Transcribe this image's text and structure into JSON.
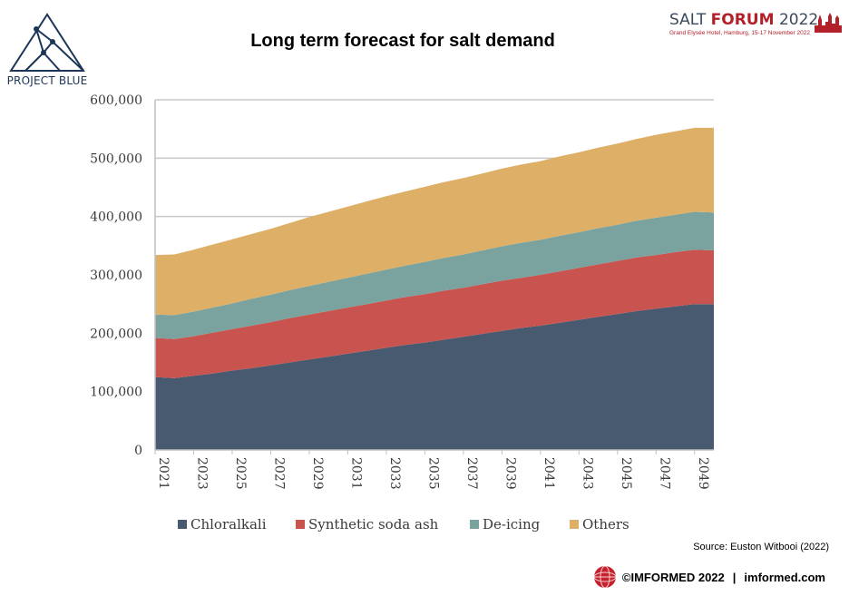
{
  "branding": {
    "left_logo_text": "PROJECT BLUE",
    "forum_name_prefix": "SALT ",
    "forum_name_bold": "FORUM",
    "forum_name_year": " 2022",
    "forum_venue": "Grand Elysée Hotel, Hamburg, 15-17 November 2022"
  },
  "source": "Source: Euston Witbooi (2022)",
  "footer": {
    "copyright": "©IMFORMED 2022",
    "separator": "|",
    "website": "imformed.com"
  },
  "colors": {
    "Chloralkali": "#475a6f",
    "Synthetic soda ash": "#c9534f",
    "De-icing": "#7aa39f",
    "Others": "#deaf66"
  },
  "chart_data": {
    "type": "area",
    "stacked": true,
    "title": "Long term forecast for salt demand",
    "xlabel": "",
    "ylabel": "",
    "x": [
      2021,
      2022,
      2023,
      2024,
      2025,
      2026,
      2027,
      2028,
      2029,
      2030,
      2031,
      2032,
      2033,
      2034,
      2035,
      2036,
      2037,
      2038,
      2039,
      2040,
      2041,
      2042,
      2043,
      2044,
      2045,
      2046,
      2047,
      2048,
      2049,
      2050
    ],
    "x_tick_labels": [
      "2021",
      "2023",
      "2025",
      "2027",
      "2029",
      "2031",
      "2033",
      "2035",
      "2037",
      "2039",
      "2041",
      "2043",
      "2045",
      "2047",
      "2049"
    ],
    "ylim": [
      0,
      600000
    ],
    "y_tick_labels": [
      "0",
      "100,000",
      "200,000",
      "300,000",
      "400,000",
      "500,000",
      "600,000"
    ],
    "y_ticks": [
      0,
      100000,
      200000,
      300000,
      400000,
      500000,
      600000
    ],
    "grid": "horizontal",
    "legend": "bottom",
    "series": [
      {
        "name": "Chloralkali",
        "values": [
          125000,
          123000,
          127000,
          131000,
          136000,
          140000,
          145000,
          150000,
          155000,
          160000,
          165000,
          170000,
          175000,
          180000,
          184000,
          189000,
          194000,
          199000,
          204000,
          209000,
          213000,
          218000,
          223000,
          228000,
          233000,
          238000,
          242000,
          246000,
          250000,
          250000
        ]
      },
      {
        "name": "Synthetic soda ash",
        "values": [
          67000,
          67000,
          68000,
          70000,
          71000,
          73000,
          74000,
          76000,
          77000,
          78000,
          79000,
          80000,
          81000,
          82000,
          83000,
          84000,
          84000,
          85000,
          86000,
          86000,
          87000,
          88000,
          89000,
          90000,
          91000,
          92000,
          92000,
          93000,
          93000,
          92000
        ]
      },
      {
        "name": "De-icing",
        "values": [
          40000,
          41000,
          42000,
          43000,
          44000,
          46000,
          47000,
          48000,
          49000,
          50000,
          51000,
          52000,
          53000,
          54000,
          55000,
          56000,
          57000,
          58000,
          59000,
          60000,
          60000,
          61000,
          61000,
          62000,
          62000,
          63000,
          64000,
          64000,
          65000,
          65000
        ]
      },
      {
        "name": "Others",
        "values": [
          102000,
          104000,
          106000,
          108000,
          110000,
          111000,
          113000,
          115000,
          118000,
          120000,
          122000,
          124000,
          126000,
          127000,
          129000,
          130000,
          131000,
          132000,
          133000,
          134000,
          135000,
          136000,
          137000,
          138000,
          139000,
          140000,
          142000,
          143000,
          144000,
          145000
        ]
      }
    ]
  }
}
